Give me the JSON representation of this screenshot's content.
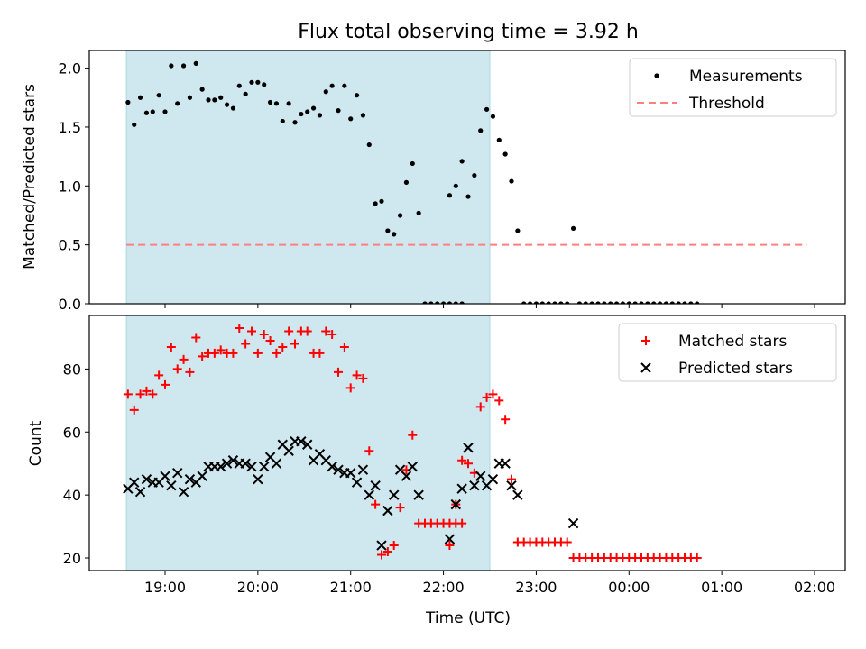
{
  "chart_data": [
    {
      "type": "scatter",
      "title": "Flux total observing time = 3.92 h",
      "ylabel": "Matched/Predicted stars",
      "xlabel": "",
      "ylim": [
        0,
        2.15
      ],
      "y_ticks": [
        "0.0",
        "0.5",
        "1.0",
        "1.5",
        "2.0"
      ],
      "x_tick_labels_shown": false,
      "shaded_interval": {
        "start": "18:35",
        "end": "22:30",
        "color": "#cfe8ef"
      },
      "threshold": {
        "name": "Threshold",
        "value": 0.5,
        "start": "18:35",
        "end": "01:55",
        "color": "#ff7f7f",
        "style": "dashed"
      },
      "legend": {
        "placement": "upper right",
        "entries": [
          "Measurements",
          "Threshold"
        ]
      },
      "series": [
        {
          "name": "Measurements",
          "color": "#000000",
          "marker": "dot",
          "points": [
            [
              "18:36",
              1.71
            ],
            [
              "18:40",
              1.52
            ],
            [
              "18:44",
              1.75
            ],
            [
              "18:48",
              1.62
            ],
            [
              "18:52",
              1.63
            ],
            [
              "18:56",
              1.77
            ],
            [
              "19:00",
              1.63
            ],
            [
              "19:04",
              2.02
            ],
            [
              "19:08",
              1.7
            ],
            [
              "19:12",
              2.02
            ],
            [
              "19:16",
              1.75
            ],
            [
              "19:20",
              2.04
            ],
            [
              "19:24",
              1.82
            ],
            [
              "19:28",
              1.73
            ],
            [
              "19:32",
              1.73
            ],
            [
              "19:36",
              1.75
            ],
            [
              "19:40",
              1.69
            ],
            [
              "19:44",
              1.66
            ],
            [
              "19:48",
              1.85
            ],
            [
              "19:52",
              1.78
            ],
            [
              "19:56",
              1.88
            ],
            [
              "20:00",
              1.88
            ],
            [
              "20:04",
              1.86
            ],
            [
              "20:08",
              1.71
            ],
            [
              "20:12",
              1.7
            ],
            [
              "20:16",
              1.55
            ],
            [
              "20:20",
              1.7
            ],
            [
              "20:24",
              1.54
            ],
            [
              "20:28",
              1.61
            ],
            [
              "20:32",
              1.63
            ],
            [
              "20:36",
              1.66
            ],
            [
              "20:40",
              1.6
            ],
            [
              "20:44",
              1.8
            ],
            [
              "20:48",
              1.85
            ],
            [
              "20:52",
              1.64
            ],
            [
              "20:56",
              1.85
            ],
            [
              "21:00",
              1.57
            ],
            [
              "21:04",
              1.77
            ],
            [
              "21:08",
              1.6
            ],
            [
              "21:12",
              1.35
            ],
            [
              "21:16",
              0.85
            ],
            [
              "21:20",
              0.87
            ],
            [
              "21:24",
              0.62
            ],
            [
              "21:28",
              0.59
            ],
            [
              "21:32",
              0.75
            ],
            [
              "21:36",
              1.03
            ],
            [
              "21:40",
              1.19
            ],
            [
              "21:44",
              0.77
            ],
            [
              "21:48",
              0.0
            ],
            [
              "21:52",
              0.0
            ],
            [
              "21:56",
              0.0
            ],
            [
              "22:00",
              0.0
            ],
            [
              "22:04",
              0.0
            ],
            [
              "22:08",
              0.0
            ],
            [
              "22:12",
              0.0
            ],
            [
              "22:04",
              0.92
            ],
            [
              "22:08",
              1.0
            ],
            [
              "22:12",
              1.21
            ],
            [
              "22:16",
              0.91
            ],
            [
              "22:20",
              1.09
            ],
            [
              "22:24",
              1.47
            ],
            [
              "22:28",
              1.65
            ],
            [
              "22:32",
              1.59
            ],
            [
              "22:36",
              1.39
            ],
            [
              "22:40",
              1.27
            ],
            [
              "22:44",
              1.04
            ],
            [
              "22:48",
              0.62
            ],
            [
              "22:52",
              0.0
            ],
            [
              "22:56",
              0.0
            ],
            [
              "23:00",
              0.0
            ],
            [
              "23:04",
              0.0
            ],
            [
              "23:08",
              0.0
            ],
            [
              "23:12",
              0.0
            ],
            [
              "23:16",
              0.0
            ],
            [
              "23:20",
              0.0
            ],
            [
              "23:24",
              0.64
            ],
            [
              "23:28",
              0.0
            ],
            [
              "23:32",
              0.0
            ],
            [
              "23:36",
              0.0
            ],
            [
              "23:40",
              0.0
            ],
            [
              "23:44",
              0.0
            ],
            [
              "23:48",
              0.0
            ],
            [
              "23:52",
              0.0
            ],
            [
              "23:56",
              0.0
            ],
            [
              "00:00",
              0.0
            ],
            [
              "00:04",
              0.0
            ],
            [
              "00:08",
              0.0
            ],
            [
              "00:12",
              0.0
            ],
            [
              "00:16",
              0.0
            ],
            [
              "00:20",
              0.0
            ],
            [
              "00:24",
              0.0
            ],
            [
              "00:28",
              0.0
            ],
            [
              "00:32",
              0.0
            ],
            [
              "00:36",
              0.0
            ],
            [
              "00:40",
              0.0
            ],
            [
              "00:44",
              0.0
            ]
          ]
        }
      ]
    },
    {
      "type": "scatter",
      "title": "",
      "ylabel": "Count",
      "xlabel": "Time (UTC)",
      "ylim": [
        16,
        97
      ],
      "y_ticks": [
        "20",
        "40",
        "60",
        "80"
      ],
      "x_ticks": [
        "19:00",
        "20:00",
        "21:00",
        "22:00",
        "23:00",
        "00:00",
        "01:00",
        "02:00"
      ],
      "shaded_interval": {
        "start": "18:35",
        "end": "22:30",
        "color": "#cfe8ef"
      },
      "legend": {
        "placement": "upper right",
        "entries": [
          "Matched stars",
          "Predicted stars"
        ]
      },
      "series": [
        {
          "name": "Matched stars",
          "color": "#ff0000",
          "marker": "plus",
          "points": [
            [
              "18:36",
              72
            ],
            [
              "18:40",
              67
            ],
            [
              "18:44",
              72
            ],
            [
              "18:48",
              73
            ],
            [
              "18:52",
              72
            ],
            [
              "18:56",
              78
            ],
            [
              "19:00",
              75
            ],
            [
              "19:04",
              87
            ],
            [
              "19:08",
              80
            ],
            [
              "19:12",
              83
            ],
            [
              "19:16",
              79
            ],
            [
              "19:20",
              90
            ],
            [
              "19:24",
              84
            ],
            [
              "19:28",
              85
            ],
            [
              "19:32",
              85
            ],
            [
              "19:36",
              86
            ],
            [
              "19:40",
              85
            ],
            [
              "19:44",
              85
            ],
            [
              "19:48",
              93
            ],
            [
              "19:52",
              88
            ],
            [
              "19:56",
              92
            ],
            [
              "20:00",
              85
            ],
            [
              "20:04",
              91
            ],
            [
              "20:08",
              89
            ],
            [
              "20:12",
              85
            ],
            [
              "20:16",
              87
            ],
            [
              "20:20",
              92
            ],
            [
              "20:24",
              88
            ],
            [
              "20:28",
              92
            ],
            [
              "20:32",
              92
            ],
            [
              "20:36",
              85
            ],
            [
              "20:40",
              85
            ],
            [
              "20:44",
              92
            ],
            [
              "20:48",
              91
            ],
            [
              "20:52",
              79
            ],
            [
              "20:56",
              87
            ],
            [
              "21:00",
              74
            ],
            [
              "21:04",
              78
            ],
            [
              "21:08",
              77
            ],
            [
              "21:12",
              54
            ],
            [
              "21:16",
              37
            ],
            [
              "21:20",
              21
            ],
            [
              "21:24",
              22
            ],
            [
              "21:28",
              24
            ],
            [
              "21:32",
              36
            ],
            [
              "21:36",
              48
            ],
            [
              "21:40",
              59
            ],
            [
              "21:44",
              31
            ],
            [
              "21:48",
              31
            ],
            [
              "21:52",
              31
            ],
            [
              "21:56",
              31
            ],
            [
              "22:00",
              31
            ],
            [
              "22:04",
              31
            ],
            [
              "22:08",
              31
            ],
            [
              "22:12",
              31
            ],
            [
              "22:04",
              24
            ],
            [
              "22:08",
              37
            ],
            [
              "22:12",
              51
            ],
            [
              "22:16",
              50
            ],
            [
              "22:20",
              47
            ],
            [
              "22:24",
              68
            ],
            [
              "22:28",
              71
            ],
            [
              "22:32",
              72
            ],
            [
              "22:36",
              70
            ],
            [
              "22:40",
              64
            ],
            [
              "22:44",
              45
            ],
            [
              "22:48",
              25
            ],
            [
              "22:52",
              25
            ],
            [
              "22:56",
              25
            ],
            [
              "23:00",
              25
            ],
            [
              "23:04",
              25
            ],
            [
              "23:08",
              25
            ],
            [
              "23:12",
              25
            ],
            [
              "23:16",
              25
            ],
            [
              "23:20",
              25
            ],
            [
              "23:24",
              20
            ],
            [
              "23:28",
              20
            ],
            [
              "23:32",
              20
            ],
            [
              "23:36",
              20
            ],
            [
              "23:40",
              20
            ],
            [
              "23:44",
              20
            ],
            [
              "23:48",
              20
            ],
            [
              "23:52",
              20
            ],
            [
              "23:56",
              20
            ],
            [
              "00:00",
              20
            ],
            [
              "00:04",
              20
            ],
            [
              "00:08",
              20
            ],
            [
              "00:12",
              20
            ],
            [
              "00:16",
              20
            ],
            [
              "00:20",
              20
            ],
            [
              "00:24",
              20
            ],
            [
              "00:28",
              20
            ],
            [
              "00:32",
              20
            ],
            [
              "00:36",
              20
            ],
            [
              "00:40",
              20
            ],
            [
              "00:44",
              20
            ]
          ]
        },
        {
          "name": "Predicted stars",
          "color": "#000000",
          "marker": "x",
          "points": [
            [
              "18:36",
              42
            ],
            [
              "18:40",
              44
            ],
            [
              "18:44",
              41
            ],
            [
              "18:48",
              45
            ],
            [
              "18:52",
              44
            ],
            [
              "18:56",
              44
            ],
            [
              "19:00",
              46
            ],
            [
              "19:04",
              43
            ],
            [
              "19:08",
              47
            ],
            [
              "19:12",
              41
            ],
            [
              "19:16",
              45
            ],
            [
              "19:20",
              44
            ],
            [
              "19:24",
              46
            ],
            [
              "19:28",
              49
            ],
            [
              "19:32",
              49
            ],
            [
              "19:36",
              49
            ],
            [
              "19:40",
              50
            ],
            [
              "19:44",
              51
            ],
            [
              "19:48",
              50
            ],
            [
              "19:52",
              50
            ],
            [
              "19:56",
              49
            ],
            [
              "20:00",
              45
            ],
            [
              "20:04",
              49
            ],
            [
              "20:08",
              52
            ],
            [
              "20:12",
              50
            ],
            [
              "20:16",
              56
            ],
            [
              "20:20",
              54
            ],
            [
              "20:24",
              57
            ],
            [
              "20:28",
              57
            ],
            [
              "20:32",
              56
            ],
            [
              "20:36",
              51
            ],
            [
              "20:40",
              53
            ],
            [
              "20:44",
              51
            ],
            [
              "20:48",
              49
            ],
            [
              "20:52",
              48
            ],
            [
              "20:56",
              47
            ],
            [
              "21:00",
              47
            ],
            [
              "21:04",
              44
            ],
            [
              "21:08",
              48
            ],
            [
              "21:12",
              40
            ],
            [
              "21:16",
              43
            ],
            [
              "21:20",
              24
            ],
            [
              "21:24",
              35
            ],
            [
              "21:28",
              40
            ],
            [
              "21:32",
              48
            ],
            [
              "21:36",
              46
            ],
            [
              "21:40",
              49
            ],
            [
              "21:44",
              40
            ],
            [
              "22:04",
              26
            ],
            [
              "22:08",
              37
            ],
            [
              "22:12",
              42
            ],
            [
              "22:16",
              55
            ],
            [
              "22:20",
              43
            ],
            [
              "22:24",
              46
            ],
            [
              "22:28",
              43
            ],
            [
              "22:32",
              45
            ],
            [
              "22:36",
              50
            ],
            [
              "22:40",
              50
            ],
            [
              "22:44",
              43
            ],
            [
              "22:48",
              40
            ],
            [
              "23:24",
              31
            ]
          ]
        }
      ]
    }
  ]
}
